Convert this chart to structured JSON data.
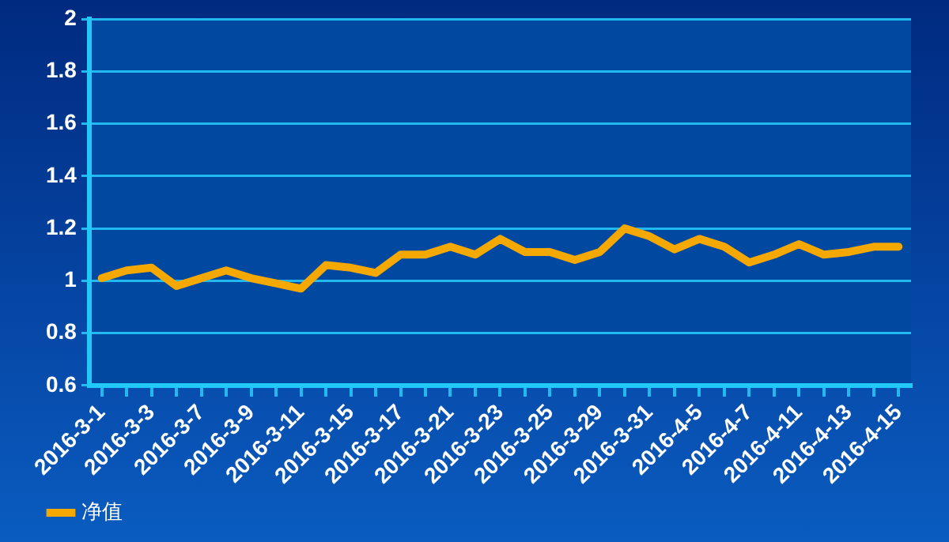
{
  "chart_data": {
    "type": "line",
    "categories": [
      "2016-3-1",
      null,
      "2016-3-3",
      null,
      "2016-3-7",
      null,
      "2016-3-9",
      null,
      "2016-3-11",
      null,
      "2016-3-15",
      null,
      "2016-3-17",
      null,
      "2016-3-21",
      null,
      "2016-3-23",
      null,
      "2016-3-25",
      null,
      "2016-3-29",
      null,
      "2016-3-31",
      null,
      "2016-4-5",
      null,
      "2016-4-7",
      null,
      "2016-4-11",
      null,
      "2016-4-13",
      null,
      "2016-4-15"
    ],
    "series": [
      {
        "name": "净值",
        "color": "#f5a800",
        "values": [
          1.01,
          1.04,
          1.05,
          0.98,
          1.01,
          1.04,
          1.01,
          0.99,
          0.97,
          1.06,
          1.05,
          1.03,
          1.1,
          1.1,
          1.13,
          1.1,
          1.16,
          1.11,
          1.11,
          1.08,
          1.11,
          1.2,
          1.17,
          1.12,
          1.16,
          1.13,
          1.07,
          1.1,
          1.14,
          1.1,
          1.11,
          1.13,
          1.13
        ]
      }
    ],
    "ylim": [
      0.6,
      2
    ],
    "yticks": [
      0.6,
      0.8,
      1,
      1.2,
      1.4,
      1.6,
      1.8,
      2
    ],
    "grid": "y",
    "legend": "bottom left",
    "marker": "none",
    "line_style": "solid"
  }
}
